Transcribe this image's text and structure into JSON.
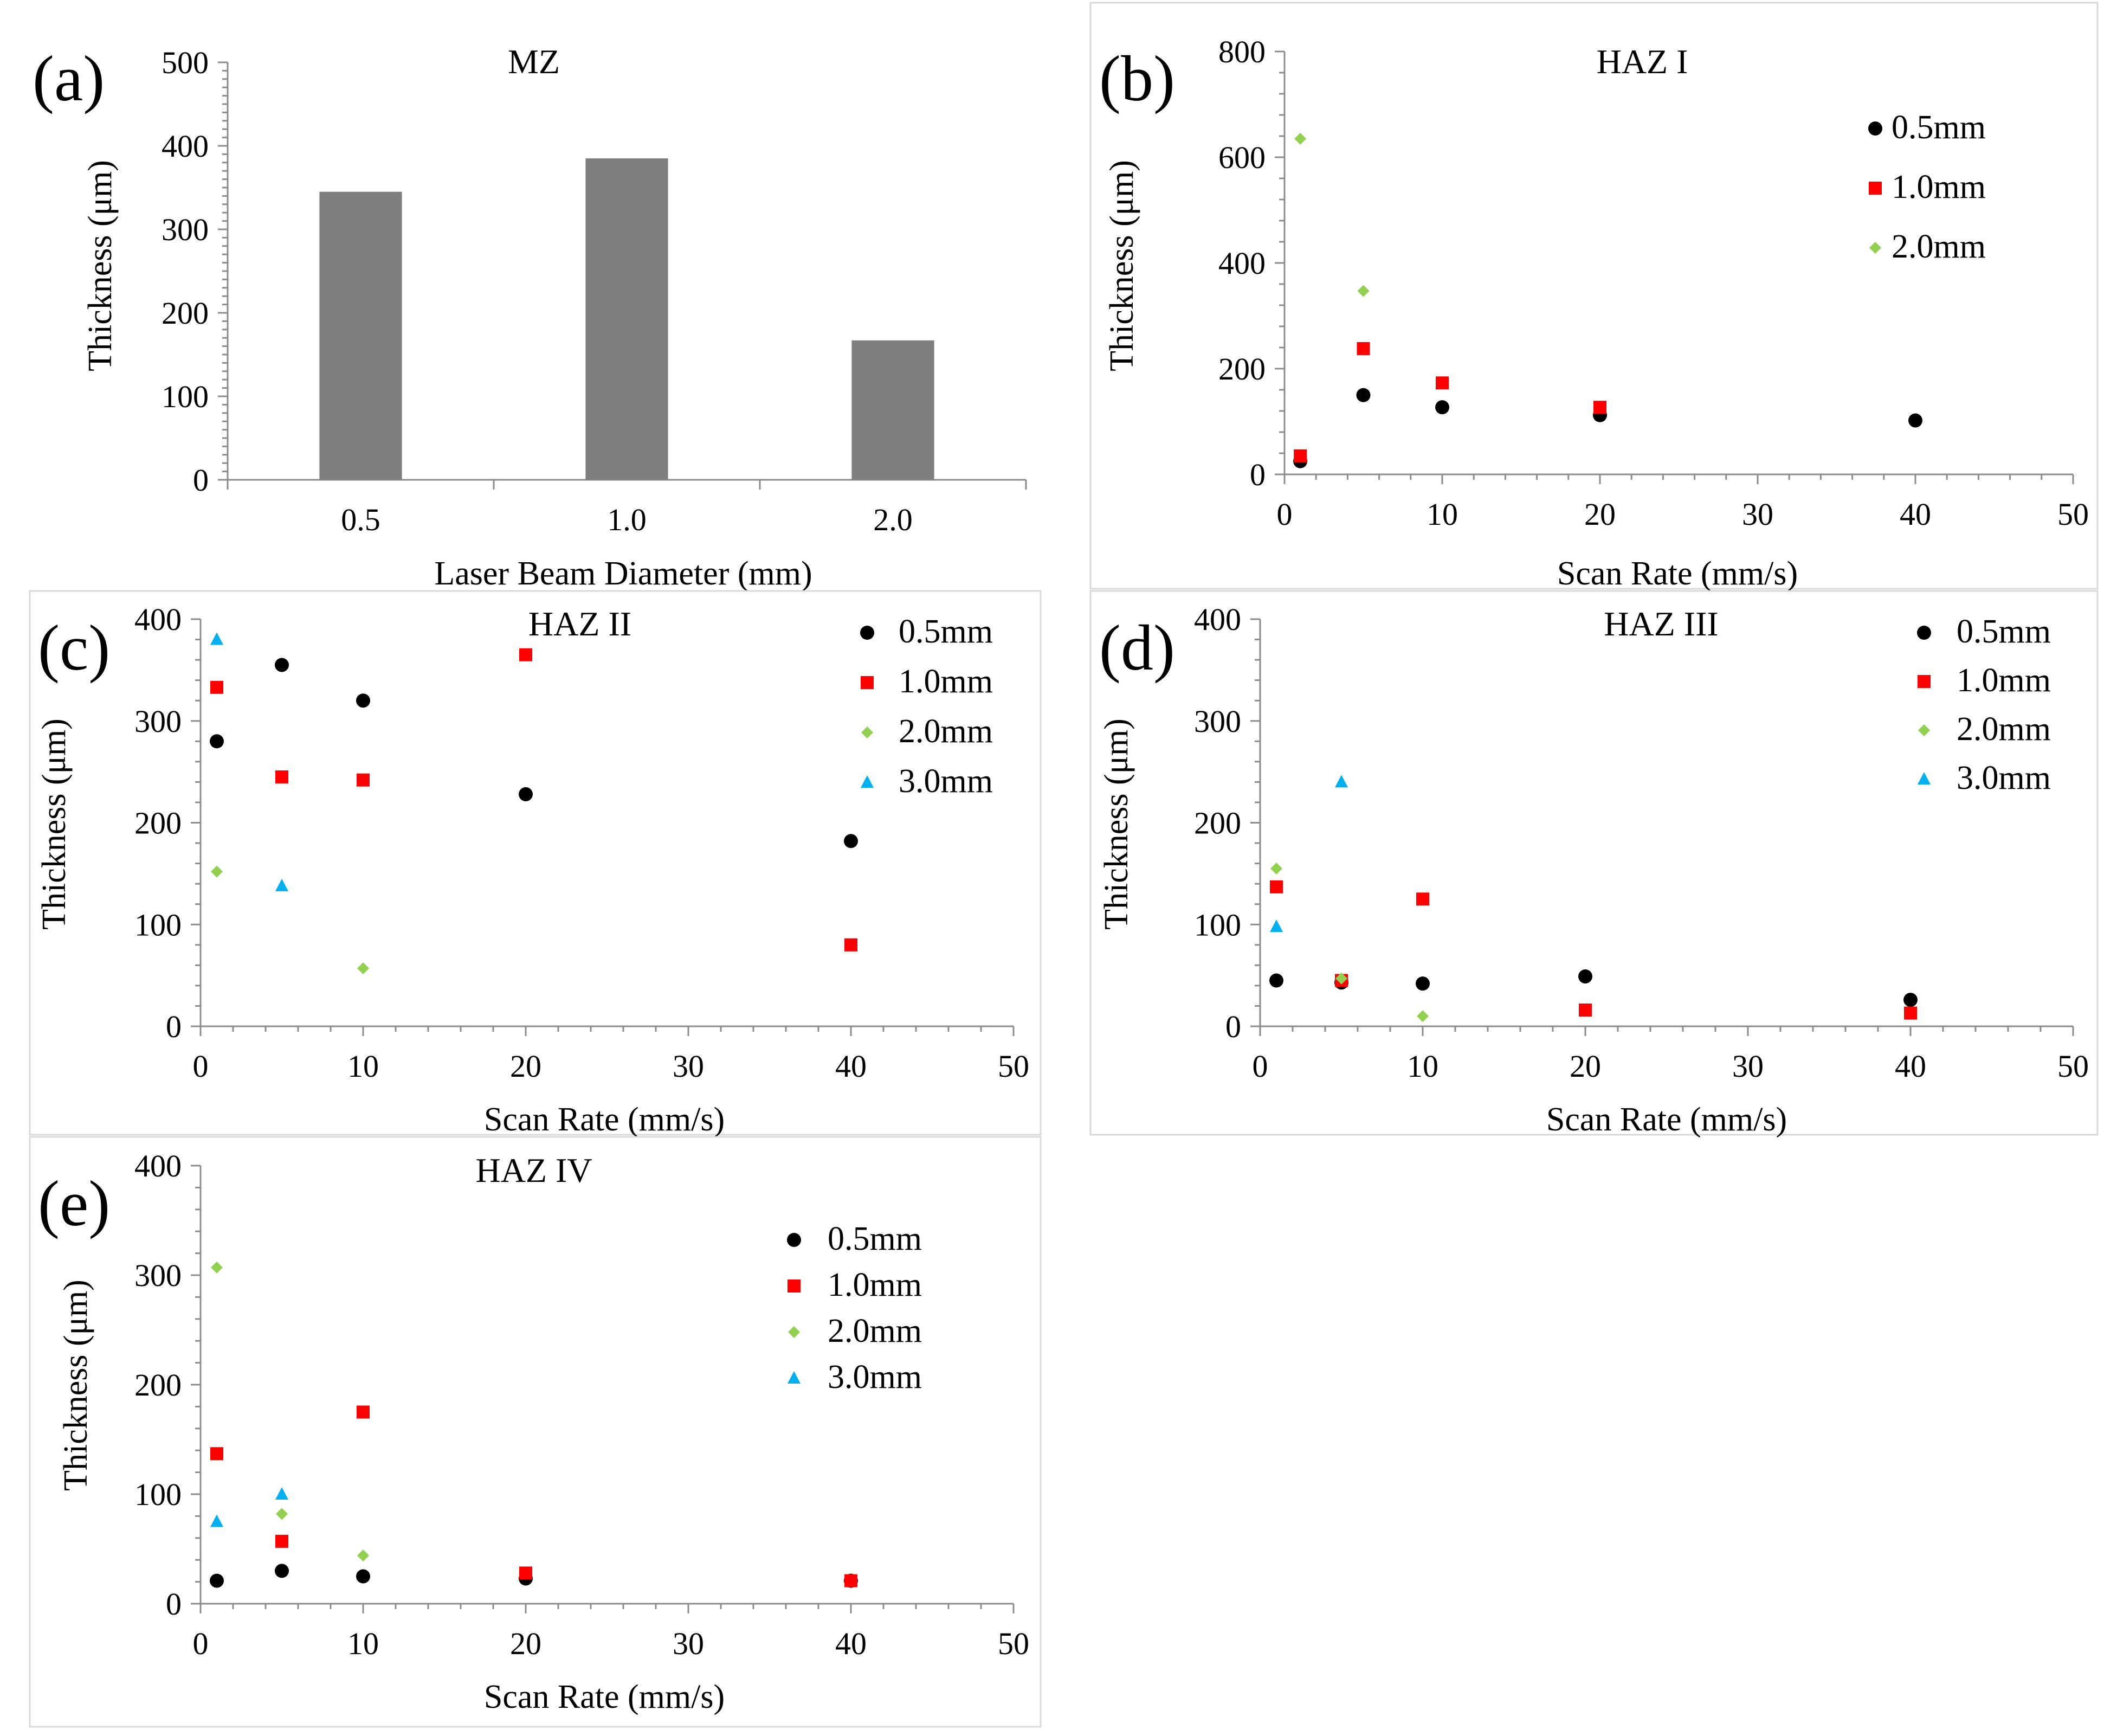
{
  "figure_description_labels": [
    "(a)",
    "(b)",
    "(c)",
    "(d)",
    "(e)"
  ],
  "colors": {
    "bar": "#7f7f7f",
    "series_0_5mm": "#000000",
    "series_1_0mm": "#ff0000",
    "series_2_0mm": "#92d050",
    "series_3_0mm": "#00b0f0",
    "axis": "#8c8c8c",
    "border": "#d9d9d9"
  },
  "chart_data": [
    {
      "id": "a",
      "panel_label": "(a)",
      "type": "bar",
      "title": "MZ",
      "xlabel": "Laser Beam Diameter (mm)",
      "ylabel": "Thickness (μm)",
      "categories": [
        "0.5",
        "1.0",
        "2.0"
      ],
      "values": [
        345,
        385,
        167
      ],
      "ylim": [
        0,
        500
      ],
      "yticks": [
        "0",
        "100",
        "200",
        "300",
        "400",
        "500"
      ],
      "legend": null
    },
    {
      "id": "b",
      "panel_label": "(b)",
      "type": "scatter",
      "title": "HAZ I",
      "xlabel": "Scan Rate (mm/s)",
      "ylabel": "Thickness (μm)",
      "xlim": [
        0,
        50
      ],
      "ylim": [
        0,
        800
      ],
      "xticks": [
        "0",
        "10",
        "20",
        "30",
        "40",
        "50"
      ],
      "yticks": [
        "0",
        "200",
        "400",
        "600",
        "800"
      ],
      "legend": "top-right",
      "series": [
        {
          "name": "0.5mm",
          "marker": "circle",
          "x": [
            1,
            5,
            10,
            20,
            40
          ],
          "y": [
            25,
            150,
            127,
            112,
            102
          ]
        },
        {
          "name": "1.0mm",
          "marker": "square",
          "x": [
            1,
            5,
            10,
            20
          ],
          "y": [
            35,
            238,
            173,
            127
          ]
        },
        {
          "name": "2.0mm",
          "marker": "diamond",
          "x": [
            1,
            5
          ],
          "y": [
            635,
            347
          ]
        }
      ]
    },
    {
      "id": "c",
      "panel_label": "(c)",
      "type": "scatter",
      "title": "HAZ II",
      "xlabel": "Scan Rate (mm/s)",
      "ylabel": "Thickness (μm)",
      "xlim": [
        0,
        50
      ],
      "ylim": [
        0,
        400
      ],
      "xticks": [
        "0",
        "10",
        "20",
        "30",
        "40",
        "50"
      ],
      "yticks": [
        "0",
        "100",
        "200",
        "300",
        "400"
      ],
      "legend": "top-right",
      "series": [
        {
          "name": "0.5mm",
          "marker": "circle",
          "x": [
            1,
            5,
            10,
            20,
            40
          ],
          "y": [
            280,
            355,
            320,
            228,
            182
          ]
        },
        {
          "name": "1.0mm",
          "marker": "square",
          "x": [
            1,
            5,
            10,
            20,
            40
          ],
          "y": [
            333,
            245,
            242,
            365,
            80
          ]
        },
        {
          "name": "2.0mm",
          "marker": "diamond",
          "x": [
            1,
            10
          ],
          "y": [
            152,
            57
          ]
        },
        {
          "name": "3.0mm",
          "marker": "triangle",
          "x": [
            1,
            5
          ],
          "y": [
            380,
            138
          ]
        }
      ]
    },
    {
      "id": "d",
      "panel_label": "(d)",
      "type": "scatter",
      "title": "HAZ III",
      "xlabel": "Scan Rate (mm/s)",
      "ylabel": "Thickness (μm)",
      "xlim": [
        0,
        50
      ],
      "ylim": [
        0,
        400
      ],
      "xticks": [
        "0",
        "10",
        "20",
        "30",
        "40",
        "50"
      ],
      "yticks": [
        "0",
        "100",
        "200",
        "300",
        "400"
      ],
      "legend": "top-right",
      "series": [
        {
          "name": "0.5mm",
          "marker": "circle",
          "x": [
            1,
            5,
            10,
            20,
            40
          ],
          "y": [
            45,
            43,
            42,
            49,
            26
          ]
        },
        {
          "name": "1.0mm",
          "marker": "square",
          "x": [
            1,
            5,
            10,
            20,
            40
          ],
          "y": [
            137,
            45,
            125,
            16,
            13
          ]
        },
        {
          "name": "2.0mm",
          "marker": "diamond",
          "x": [
            1,
            5,
            10
          ],
          "y": [
            155,
            47,
            10
          ]
        },
        {
          "name": "3.0mm",
          "marker": "triangle",
          "x": [
            1,
            5
          ],
          "y": [
            98,
            240
          ]
        }
      ]
    },
    {
      "id": "e",
      "panel_label": "(e)",
      "type": "scatter",
      "title": "HAZ IV",
      "xlabel": "Scan Rate (mm/s)",
      "ylabel": "Thickness (μm)",
      "xlim": [
        0,
        50
      ],
      "ylim": [
        0,
        400
      ],
      "xticks": [
        "0",
        "10",
        "20",
        "30",
        "40",
        "50"
      ],
      "yticks": [
        "0",
        "100",
        "200",
        "300",
        "400"
      ],
      "legend": "top-right",
      "series": [
        {
          "name": "0.5mm",
          "marker": "circle",
          "x": [
            1,
            5,
            10,
            20,
            40
          ],
          "y": [
            21,
            30,
            25,
            23,
            21
          ]
        },
        {
          "name": "1.0mm",
          "marker": "square",
          "x": [
            1,
            5,
            10,
            20,
            40
          ],
          "y": [
            137,
            57,
            175,
            28,
            21
          ]
        },
        {
          "name": "2.0mm",
          "marker": "diamond",
          "x": [
            1,
            5,
            10
          ],
          "y": [
            307,
            82,
            44
          ]
        },
        {
          "name": "3.0mm",
          "marker": "triangle",
          "x": [
            1,
            5
          ],
          "y": [
            75,
            100
          ]
        }
      ]
    }
  ]
}
